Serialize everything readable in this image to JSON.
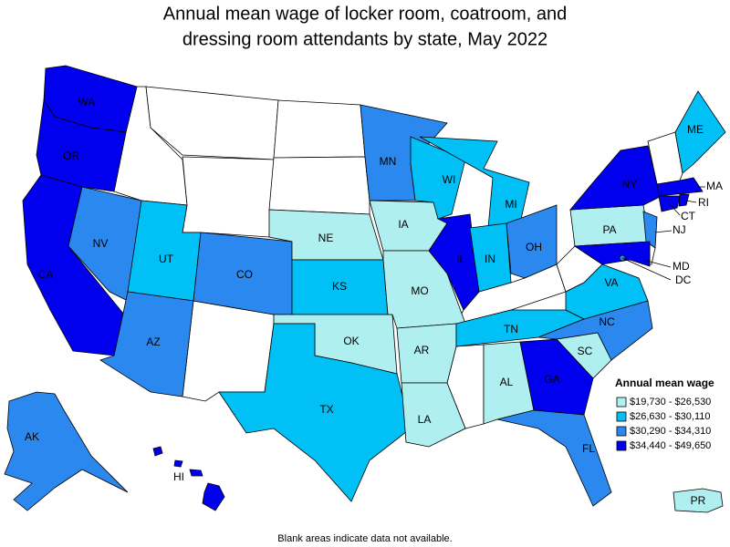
{
  "title": [
    "Annual mean wage of locker room, coatroom, and",
    "dressing room attendants by state, May 2022"
  ],
  "legend": {
    "title": "Annual mean wage",
    "bins": [
      {
        "label": "$19,730 - $26,530",
        "color": "#b0efef"
      },
      {
        "label": "$26,630 - $30,110",
        "color": "#00c0f6"
      },
      {
        "label": "$30,290 - $34,310",
        "color": "#2b88ee"
      },
      {
        "label": "$34,440 - $49,650",
        "color": "#0000ee"
      }
    ]
  },
  "states": [
    {
      "label": "WA",
      "bin": 3
    },
    {
      "label": "OR",
      "bin": 3
    },
    {
      "label": "CA",
      "bin": 3
    },
    {
      "label": "NV",
      "bin": 2
    },
    {
      "label": "UT",
      "bin": 1
    },
    {
      "label": "AZ",
      "bin": 2
    },
    {
      "label": "CO",
      "bin": 2
    },
    {
      "label": "NE",
      "bin": 0
    },
    {
      "label": "KS",
      "bin": 1
    },
    {
      "label": "OK",
      "bin": 0
    },
    {
      "label": "TX",
      "bin": 1
    },
    {
      "label": "MN",
      "bin": 2
    },
    {
      "label": "IA",
      "bin": 0
    },
    {
      "label": "MO",
      "bin": 0
    },
    {
      "label": "AR",
      "bin": 0
    },
    {
      "label": "LA",
      "bin": 0
    },
    {
      "label": "WI",
      "bin": 1
    },
    {
      "label": "IL",
      "bin": 3
    },
    {
      "label": "MI",
      "bin": 1
    },
    {
      "label": "IN",
      "bin": 1
    },
    {
      "label": "OH",
      "bin": 2
    },
    {
      "label": "TN",
      "bin": 1
    },
    {
      "label": "AL",
      "bin": 0
    },
    {
      "label": "GA",
      "bin": 3
    },
    {
      "label": "FL",
      "bin": 2
    },
    {
      "label": "SC",
      "bin": 0
    },
    {
      "label": "NC",
      "bin": 2
    },
    {
      "label": "VA",
      "bin": 1
    },
    {
      "label": "PA",
      "bin": 0
    },
    {
      "label": "NY",
      "bin": 3
    },
    {
      "label": "NJ",
      "bin": 2
    },
    {
      "label": "MD",
      "bin": 3
    },
    {
      "label": "DC",
      "bin": 2
    },
    {
      "label": "ME",
      "bin": 1
    },
    {
      "label": "MA",
      "bin": 3
    },
    {
      "label": "CT",
      "bin": 3
    },
    {
      "label": "RI",
      "bin": 3
    },
    {
      "label": "AK",
      "bin": 2
    },
    {
      "label": "HI",
      "bin": 3
    },
    {
      "label": "PR",
      "bin": 0
    }
  ],
  "note": "Blank areas indicate data not available."
}
